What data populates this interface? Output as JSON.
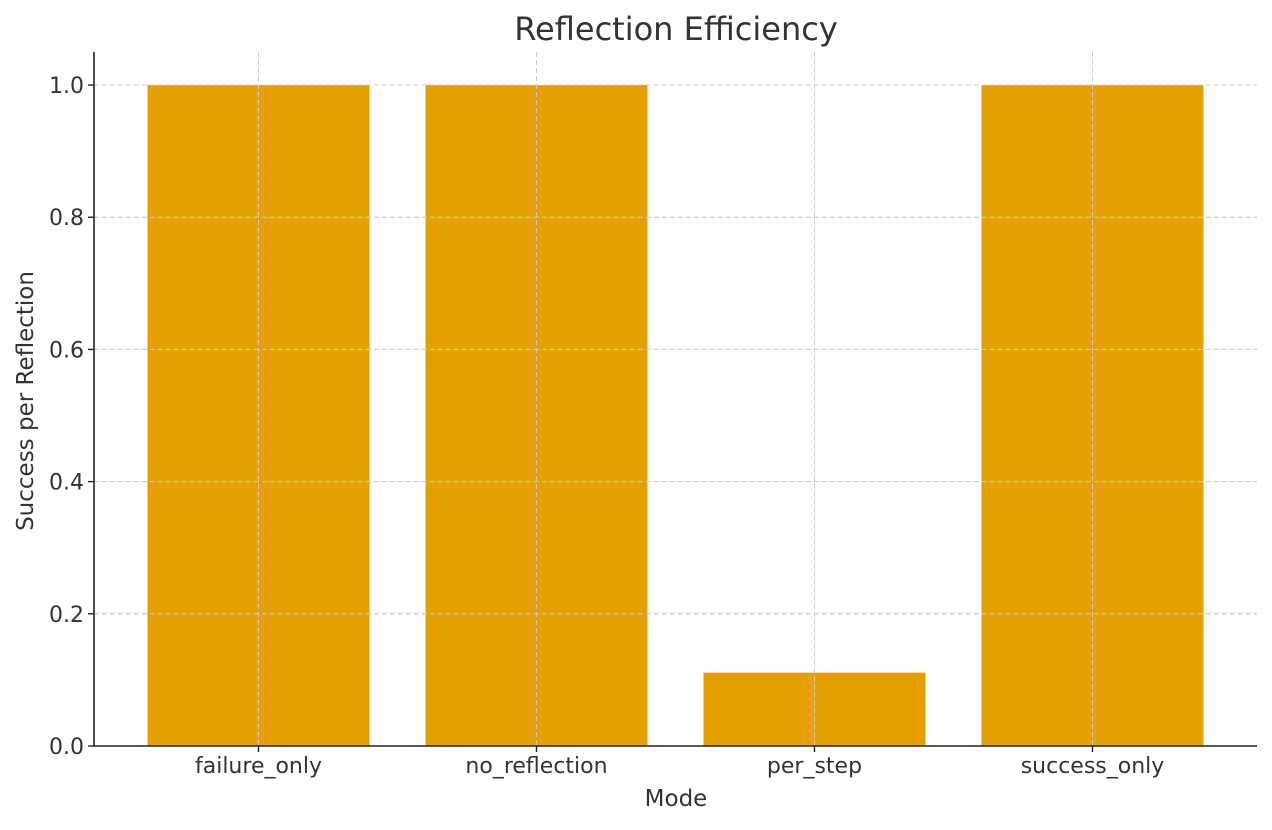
{
  "chart_data": {
    "type": "bar",
    "title": "Reflection Efficiency",
    "xlabel": "Mode",
    "ylabel": "Success per Reflection",
    "categories": [
      "failure_only",
      "no_reflection",
      "per_step",
      "success_only"
    ],
    "values": [
      1.0,
      1.0,
      0.111,
      1.0
    ],
    "ylim": [
      0,
      1.05
    ],
    "yticks": [
      "0.0",
      "0.2",
      "0.4",
      "0.6",
      "0.8",
      "1.0"
    ],
    "grid": true,
    "bar_color": "#E69F00",
    "grid_color": "#cccccc",
    "text_color": "#333333"
  }
}
